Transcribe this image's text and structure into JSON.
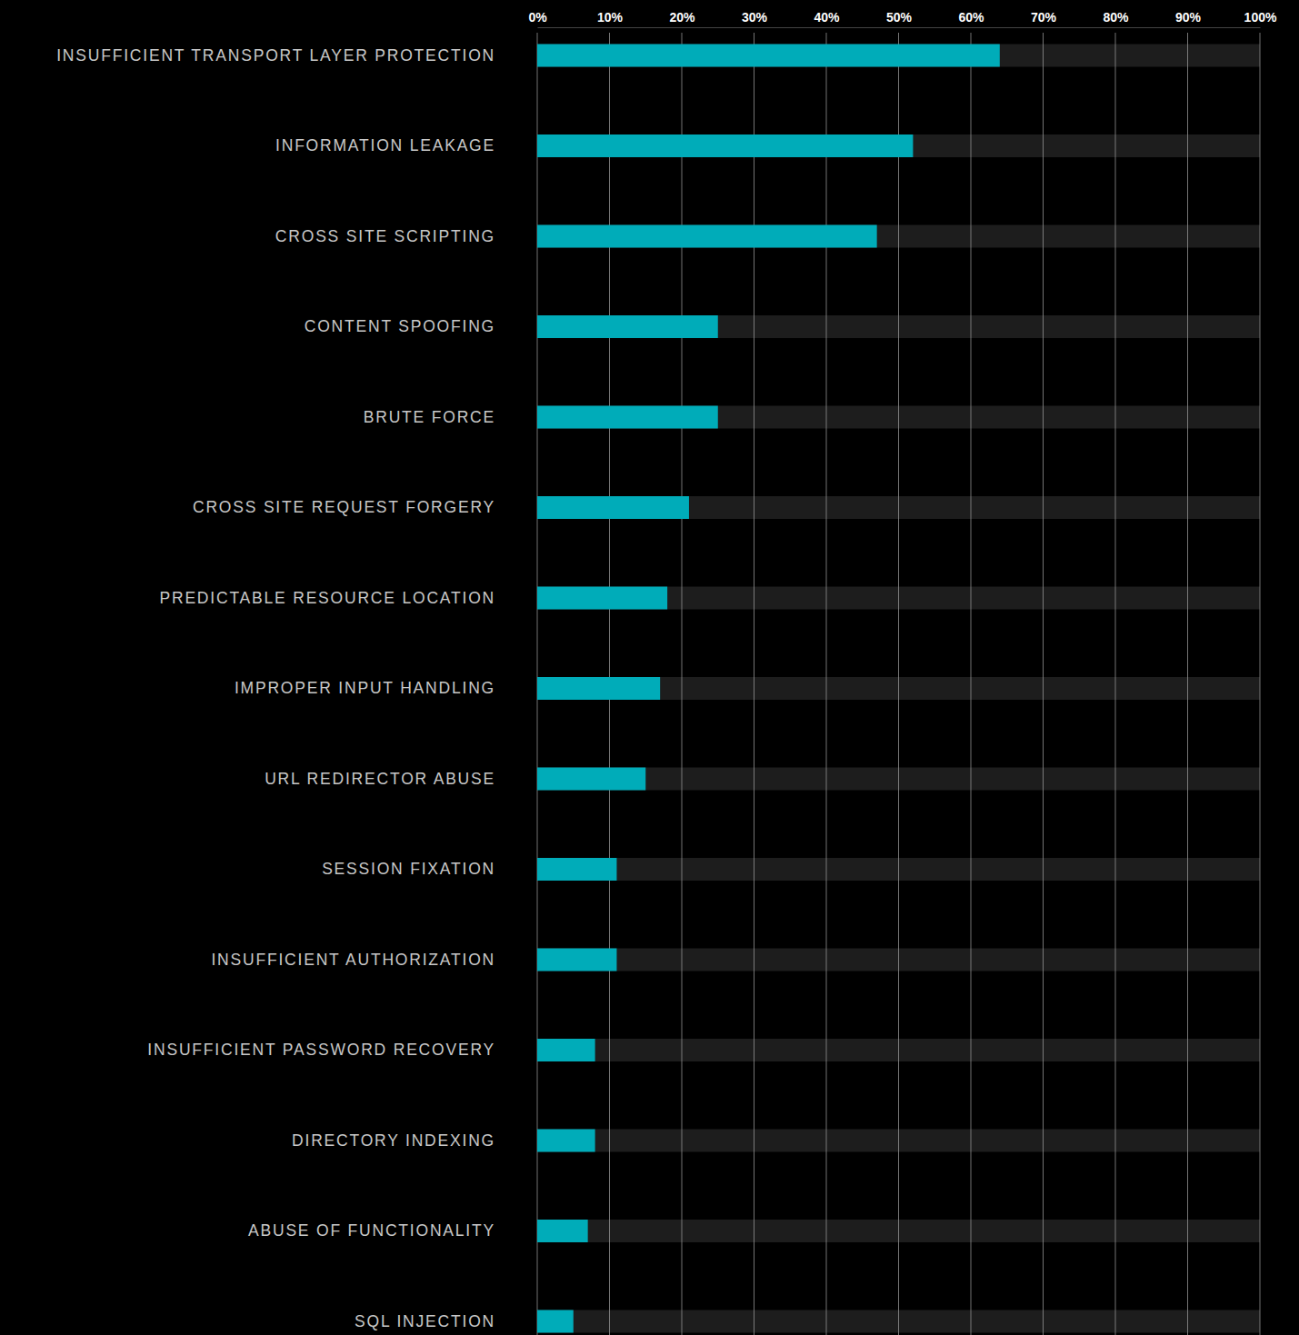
{
  "chart_data": {
    "type": "bar",
    "orientation": "horizontal",
    "categories": [
      "INSUFFICIENT TRANSPORT LAYER PROTECTION",
      "INFORMATION LEAKAGE",
      "CROSS SITE SCRIPTING",
      "CONTENT SPOOFING",
      "BRUTE FORCE",
      "CROSS SITE REQUEST FORGERY",
      "PREDICTABLE RESOURCE LOCATION",
      "IMPROPER INPUT HANDLING",
      "URL REDIRECTOR ABUSE",
      "SESSION FIXATION",
      "INSUFFICIENT AUTHORIZATION",
      "INSUFFICIENT PASSWORD RECOVERY",
      "DIRECTORY INDEXING",
      "ABUSE OF FUNCTIONALITY",
      "SQL INJECTION"
    ],
    "values": [
      64,
      52,
      47,
      25,
      25,
      21,
      18,
      17,
      15,
      11,
      11,
      8,
      8,
      7,
      5
    ],
    "color": "#00acb9",
    "xlim": [
      0,
      100
    ],
    "xticks": [
      {
        "value": 0,
        "label": "0%"
      },
      {
        "value": 10,
        "label": "10%"
      },
      {
        "value": 20,
        "label": "20%"
      },
      {
        "value": 30,
        "label": "30%"
      },
      {
        "value": 40,
        "label": "40%"
      },
      {
        "value": 50,
        "label": "50%"
      },
      {
        "value": 60,
        "label": "60%"
      },
      {
        "value": 70,
        "label": "70%"
      },
      {
        "value": 80,
        "label": "80%"
      },
      {
        "value": 90,
        "label": "90%"
      },
      {
        "value": 100,
        "label": "100%"
      }
    ],
    "grid": true
  }
}
